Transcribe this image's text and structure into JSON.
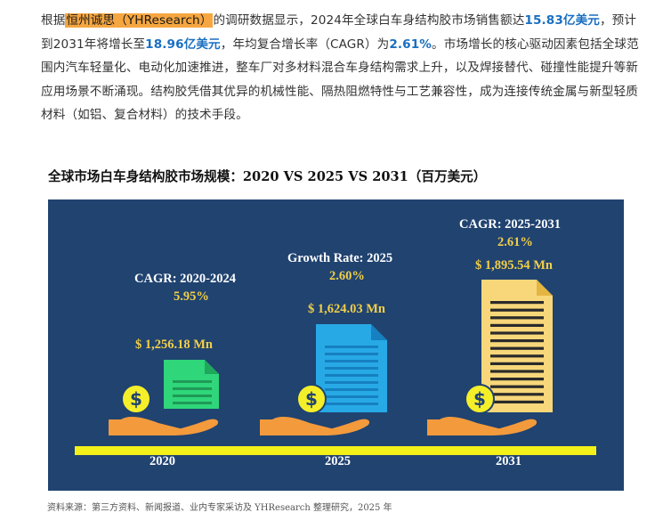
{
  "paragraph": {
    "p1": "根据",
    "company": "恒州诚思（YHResearch）",
    "p2": "的调研数据显示，2024年全球白车身结构胶市场销售额达",
    "value_2024": "15.83亿美元",
    "p3": "，预计到2031年将增长至",
    "value_2031": "18.96亿美元",
    "p4": "，年均复合增长率（CAGR）为",
    "cagr": "2.61%",
    "p5": "。市场增长的核心驱动因素包括全球范围内汽车轻量化、电动化加速推进，整车厂对多材料混合车身结构需求上升，以及焊接替代、碰撞性能提升等新应用场景不断涌现。结构胶凭借其优异的机械性能、隔热阻燃特性与工艺兼容性，成为连接传统金属与新型轻质材料（如铝、复合材料）的技术手段。"
  },
  "infographic": {
    "title": "全球市场白车身结构胶市场规模：2020 VS 2025 VS 2031（百万美元）",
    "columns": [
      {
        "rate_label": "CAGR: 2020-2024",
        "rate_value": "5.95%",
        "amount": "$ 1,256.18 Mn",
        "year": "2020",
        "doc_color": "#2fd67a"
      },
      {
        "rate_label": "Growth Rate: 2025",
        "rate_value": "2.60%",
        "amount": "$ 1,624.03 Mn",
        "year": "2025",
        "doc_color": "#27a9e6"
      },
      {
        "rate_label": "CAGR: 2025-2031",
        "rate_value": "2.61%",
        "amount": "$ 1,895.54 Mn",
        "year": "2031",
        "doc_color": "#f7d77a"
      }
    ],
    "colors": {
      "panel": "#204370",
      "bar": "#f3f01a",
      "coin": "#f5ef2a",
      "hand": "#f39a3c",
      "accent_text": "#f2cf47"
    },
    "icons": [
      "coin-icon",
      "hand-icon",
      "document-icon"
    ]
  },
  "source": "资料来源：第三方资料、新闻报道、业内专家采访及 YHResearch 整理研究，2025 年"
}
